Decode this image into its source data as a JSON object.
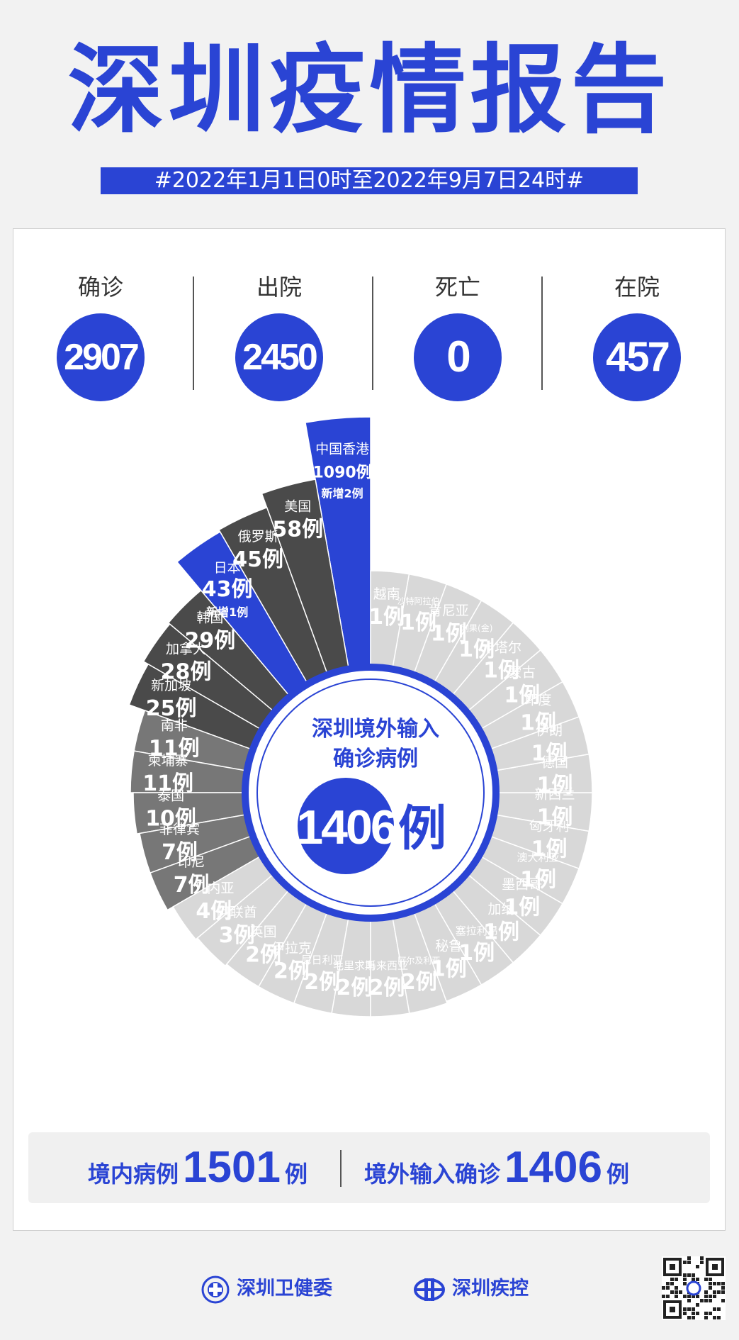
{
  "title": "深圳疫情报告",
  "period": "#2022年1月1日0时至2022年9月7日24时#",
  "stats": [
    {
      "label": "确诊",
      "value": "2907"
    },
    {
      "label": "出院",
      "value": "2450"
    },
    {
      "label": "死亡",
      "value": "0"
    },
    {
      "label": "在院",
      "value": "457"
    }
  ],
  "center": {
    "line1": "深圳境外输入",
    "line2": "确诊病例",
    "value": "1406",
    "unit": "例"
  },
  "colors": {
    "blue": "#2a44d4",
    "dark": "#4a4a4a",
    "gray": "#777777",
    "light": "#d8d8d8"
  },
  "chart_data": {
    "type": "radial-bar",
    "unit": "例",
    "items": [
      {
        "name": "中国香港",
        "value": 1090,
        "label": "1090例",
        "note": "新增2例"
      },
      {
        "name": "美国",
        "value": 58,
        "label": "58例"
      },
      {
        "name": "俄罗斯",
        "value": 45,
        "label": "45例"
      },
      {
        "name": "日本",
        "value": 43,
        "label": "43例",
        "note": "新增1例"
      },
      {
        "name": "韩国",
        "value": 29,
        "label": "29例"
      },
      {
        "name": "加拿大",
        "value": 28,
        "label": "28例"
      },
      {
        "name": "新加坡",
        "value": 25,
        "label": "25例"
      },
      {
        "name": "南非",
        "value": 11,
        "label": "11例"
      },
      {
        "name": "柬埔寨",
        "value": 11,
        "label": "11例"
      },
      {
        "name": "泰国",
        "value": 10,
        "label": "10例"
      },
      {
        "name": "菲律宾",
        "value": 7,
        "label": "7例"
      },
      {
        "name": "印尼",
        "value": 7,
        "label": "7例"
      },
      {
        "name": "几内亚",
        "value": 4,
        "label": "4例"
      },
      {
        "name": "阿联酋",
        "value": 3,
        "label": "3例"
      },
      {
        "name": "英国",
        "value": 2,
        "label": "2例"
      },
      {
        "name": "伊拉克",
        "value": 2,
        "label": "2例"
      },
      {
        "name": "尼日利亚",
        "value": 2,
        "label": "2例"
      },
      {
        "name": "毛里求斯",
        "value": 2,
        "label": "2例"
      },
      {
        "name": "马来西亚",
        "value": 2,
        "label": "2例"
      },
      {
        "name": "阿尔及利亚",
        "value": 2,
        "label": "2例"
      },
      {
        "name": "秘鲁",
        "value": 1,
        "label": "1例"
      },
      {
        "name": "塞拉利昂",
        "value": 1,
        "label": "1例"
      },
      {
        "name": "加纳",
        "value": 1,
        "label": "1例"
      },
      {
        "name": "墨西哥",
        "value": 1,
        "label": "1例"
      },
      {
        "name": "澳大利亚",
        "value": 1,
        "label": "1例"
      },
      {
        "name": "匈牙利",
        "value": 1,
        "label": "1例"
      },
      {
        "name": "新西兰",
        "value": 1,
        "label": "1例"
      },
      {
        "name": "德国",
        "value": 1,
        "label": "1例"
      },
      {
        "name": "伊朗",
        "value": 1,
        "label": "1例"
      },
      {
        "name": "印度",
        "value": 1,
        "label": "1例"
      },
      {
        "name": "蒙古",
        "value": 1,
        "label": "1例"
      },
      {
        "name": "卡塔尔",
        "value": 1,
        "label": "1例"
      },
      {
        "name": "刚果(金)",
        "value": 1,
        "label": "1例"
      },
      {
        "name": "肯尼亚",
        "value": 1,
        "label": "1例"
      },
      {
        "name": "沙特阿拉伯",
        "value": 1,
        "label": "1例"
      },
      {
        "name": "越南",
        "value": 1,
        "label": "1例"
      }
    ]
  },
  "summary": {
    "domestic_label": "境内病例",
    "domestic_value": "1501",
    "domestic_unit": "例",
    "imported_label": "境外输入确诊",
    "imported_value": "1406",
    "imported_unit": "例"
  },
  "footer": {
    "org1": "深圳卫健委",
    "org2": "深圳疾控"
  }
}
